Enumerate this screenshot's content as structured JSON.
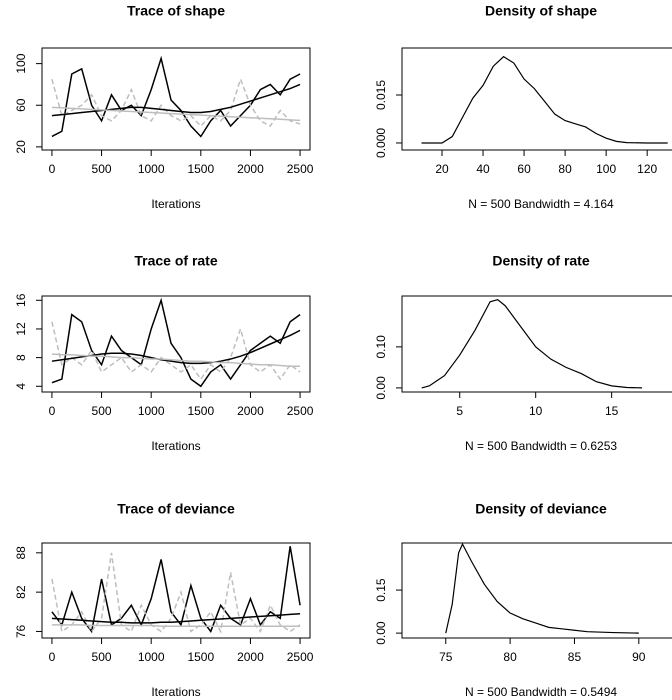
{
  "chart_data": [
    {
      "type": "line",
      "title": "Trace of shape",
      "xlabel": "Iterations",
      "x": [
        0,
        100,
        200,
        300,
        400,
        500,
        600,
        700,
        800,
        900,
        1000,
        1100,
        1200,
        1300,
        1400,
        1500,
        1600,
        1700,
        1800,
        1900,
        2000,
        2100,
        2200,
        2300,
        2400,
        2500
      ],
      "series": [
        {
          "color": "#000000",
          "linestyle": "solid",
          "width": 1.5,
          "values": [
            30,
            35,
            90,
            95,
            60,
            45,
            70,
            55,
            60,
            50,
            75,
            105,
            65,
            55,
            40,
            30,
            45,
            55,
            40,
            50,
            60,
            75,
            80,
            70,
            85,
            90
          ]
        },
        {
          "color": "#bebebe",
          "linestyle": "dashed",
          "width": 1.5,
          "values": [
            85,
            50,
            55,
            60,
            70,
            50,
            45,
            55,
            75,
            50,
            45,
            60,
            50,
            45,
            50,
            40,
            50,
            45,
            55,
            85,
            60,
            45,
            40,
            55,
            45,
            42
          ]
        },
        {
          "color": "#000000",
          "linestyle": "solid",
          "width": 1.5,
          "values": [
            50,
            51,
            52,
            53,
            54,
            55,
            56,
            57,
            58,
            58,
            57,
            56,
            55,
            54,
            53,
            53,
            54,
            56,
            58,
            61,
            64,
            67,
            70,
            73,
            76,
            80
          ]
        },
        {
          "color": "#bebebe",
          "linestyle": "solid",
          "width": 1.5,
          "values": [
            58,
            57.5,
            57,
            56.5,
            56,
            55.5,
            55,
            54.5,
            54,
            53.5,
            53,
            52.5,
            52,
            51.5,
            51,
            50.5,
            50,
            49.5,
            49,
            48.5,
            48,
            47.5,
            47,
            46.5,
            46,
            45.5
          ]
        }
      ],
      "xlim": [
        -100,
        2600
      ],
      "ylim": [
        17,
        115
      ],
      "xticks": [
        0,
        500,
        1000,
        1500,
        2000,
        2500
      ],
      "yticks": [
        20,
        60,
        100
      ]
    },
    {
      "type": "line",
      "title": "Density of shape",
      "xlabel": "N = 500   Bandwidth = 4.164",
      "x": [
        10,
        20,
        25,
        30,
        35,
        40,
        45,
        50,
        55,
        60,
        65,
        70,
        75,
        80,
        85,
        90,
        95,
        100,
        105,
        110,
        120,
        130
      ],
      "series": [
        {
          "color": "#000000",
          "linestyle": "solid",
          "width": 1.2,
          "values": [
            0,
            0,
            0.002,
            0.008,
            0.014,
            0.018,
            0.024,
            0.027,
            0.025,
            0.02,
            0.017,
            0.013,
            0.009,
            0.007,
            0.006,
            0.005,
            0.003,
            0.0015,
            0.0005,
            0.0001,
            0,
            0
          ]
        }
      ],
      "xlim": [
        0.5,
        136
      ],
      "ylim": [
        -0.0022,
        0.0297
      ],
      "xticks": [
        20,
        40,
        60,
        80,
        100,
        120
      ],
      "yticks": [
        {
          "value": 0,
          "label": "0.000"
        },
        {
          "value": 0.015,
          "label": "0.015"
        }
      ]
    },
    {
      "type": "line",
      "title": "Trace of rate",
      "xlabel": "Iterations",
      "x": [
        0,
        100,
        200,
        300,
        400,
        500,
        600,
        700,
        800,
        900,
        1000,
        1100,
        1200,
        1300,
        1400,
        1500,
        1600,
        1700,
        1800,
        1900,
        2000,
        2100,
        2200,
        2300,
        2400,
        2500
      ],
      "series": [
        {
          "color": "#000000",
          "linestyle": "solid",
          "width": 1.5,
          "values": [
            4.5,
            5,
            14,
            13,
            9,
            7,
            11,
            9,
            8,
            7,
            12,
            16,
            10,
            8,
            5,
            4,
            6,
            7,
            5,
            7,
            9,
            10,
            11,
            10,
            13,
            14
          ]
        },
        {
          "color": "#bebebe",
          "linestyle": "dashed",
          "width": 1.5,
          "values": [
            13,
            7,
            8,
            7,
            9,
            6,
            7,
            8,
            6,
            7,
            6,
            8,
            7,
            6,
            7,
            5,
            7,
            6,
            8,
            12,
            7,
            6,
            7,
            5,
            7,
            6
          ]
        },
        {
          "color": "#000000",
          "linestyle": "solid",
          "width": 1.5,
          "values": [
            7.5,
            7.7,
            7.9,
            8.1,
            8.3,
            8.5,
            8.6,
            8.6,
            8.5,
            8.3,
            8.0,
            7.7,
            7.5,
            7.3,
            7.2,
            7.2,
            7.3,
            7.5,
            7.8,
            8.2,
            8.7,
            9.3,
            9.9,
            10.5,
            11.1,
            11.8
          ]
        },
        {
          "color": "#bebebe",
          "linestyle": "solid",
          "width": 1.5,
          "values": [
            8.5,
            8.4,
            8.4,
            8.3,
            8.2,
            8.2,
            8.1,
            8.0,
            8.0,
            7.9,
            7.8,
            7.8,
            7.7,
            7.6,
            7.5,
            7.5,
            7.4,
            7.3,
            7.3,
            7.2,
            7.1,
            7.0,
            7.0,
            6.9,
            6.8,
            6.8
          ]
        }
      ],
      "xlim": [
        -100,
        2600
      ],
      "ylim": [
        3.2,
        16.6
      ],
      "xticks": [
        0,
        500,
        1000,
        1500,
        2000,
        2500
      ],
      "yticks": [
        4,
        8,
        12,
        16
      ]
    },
    {
      "type": "line",
      "title": "Density of rate",
      "xlabel": "N = 500   Bandwidth = 0.6253",
      "x": [
        2.5,
        3,
        4,
        5,
        6,
        7,
        7.5,
        8,
        9,
        10,
        11,
        12,
        13,
        14,
        15,
        16,
        17
      ],
      "series": [
        {
          "color": "#000000",
          "linestyle": "solid",
          "width": 1.2,
          "values": [
            0,
            0.005,
            0.03,
            0.08,
            0.14,
            0.21,
            0.215,
            0.2,
            0.15,
            0.1,
            0.07,
            0.05,
            0.035,
            0.015,
            0.005,
            0.001,
            0
          ]
        }
      ],
      "xlim": [
        1.2,
        19.5
      ],
      "ylim": [
        -0.01,
        0.224
      ],
      "xticks": [
        5,
        10,
        15
      ],
      "yticks": [
        {
          "value": 0,
          "label": "0.00"
        },
        {
          "value": 0.1,
          "label": "0.10"
        }
      ]
    },
    {
      "type": "line",
      "title": "Trace of deviance",
      "xlabel": "Iterations",
      "x": [
        0,
        100,
        200,
        300,
        400,
        500,
        600,
        700,
        800,
        900,
        1000,
        1100,
        1200,
        1300,
        1400,
        1500,
        1600,
        1700,
        1800,
        1900,
        2000,
        2100,
        2200,
        2300,
        2400,
        2500
      ],
      "series": [
        {
          "color": "#000000",
          "linestyle": "solid",
          "width": 1.5,
          "values": [
            79,
            77,
            82,
            78,
            76,
            84,
            77,
            78,
            80,
            77,
            81,
            87,
            79,
            77,
            83,
            78,
            76,
            80,
            78,
            77,
            81,
            77,
            79,
            78,
            89,
            80
          ]
        },
        {
          "color": "#bebebe",
          "linestyle": "dashed",
          "width": 1.5,
          "values": [
            84,
            76,
            77,
            79,
            76,
            78,
            88,
            77,
            76,
            80,
            77,
            76,
            78,
            82,
            76,
            77,
            79,
            76,
            85,
            77,
            78,
            76,
            80,
            77,
            76,
            77
          ]
        },
        {
          "color": "#000000",
          "linestyle": "solid",
          "width": 1.5,
          "values": [
            78,
            77.9,
            77.8,
            77.7,
            77.6,
            77.5,
            77.4,
            77.4,
            77.3,
            77.3,
            77.3,
            77.4,
            77.4,
            77.5,
            77.6,
            77.7,
            77.8,
            77.9,
            78,
            78.1,
            78.2,
            78.3,
            78.4,
            78.5,
            78.6,
            78.7
          ]
        },
        {
          "color": "#bebebe",
          "linestyle": "solid",
          "width": 1.5,
          "values": [
            77,
            77,
            77,
            77,
            76.9,
            76.9,
            76.9,
            76.9,
            76.9,
            76.9,
            76.9,
            76.8,
            76.8,
            76.8,
            76.8,
            76.8,
            76.8,
            76.8,
            76.8,
            76.8,
            76.8,
            76.8,
            76.8,
            76.8,
            76.8,
            76.8
          ]
        }
      ],
      "xlim": [
        -100,
        2600
      ],
      "ylim": [
        75,
        89.5
      ],
      "xticks": [
        0,
        500,
        1000,
        1500,
        2000,
        2500
      ],
      "yticks": [
        76,
        82,
        88
      ]
    },
    {
      "type": "line",
      "title": "Density of deviance",
      "xlabel": "N = 500   Bandwidth = 0.5494",
      "x": [
        75,
        75.5,
        76,
        76.3,
        77,
        78,
        79,
        80,
        81,
        82,
        83,
        84,
        85,
        86,
        88,
        90
      ],
      "series": [
        {
          "color": "#000000",
          "linestyle": "solid",
          "width": 1.2,
          "values": [
            0,
            0.1,
            0.28,
            0.31,
            0.25,
            0.17,
            0.11,
            0.07,
            0.05,
            0.035,
            0.02,
            0.015,
            0.01,
            0.005,
            0.002,
            0
          ]
        }
      ],
      "xlim": [
        71.6,
        93.2
      ],
      "ylim": [
        -0.017,
        0.314
      ],
      "xticks": [
        75,
        80,
        85,
        90
      ],
      "yticks": [
        {
          "value": 0,
          "label": "0.00"
        },
        {
          "value": 0.15,
          "label": "0.15"
        }
      ]
    }
  ]
}
